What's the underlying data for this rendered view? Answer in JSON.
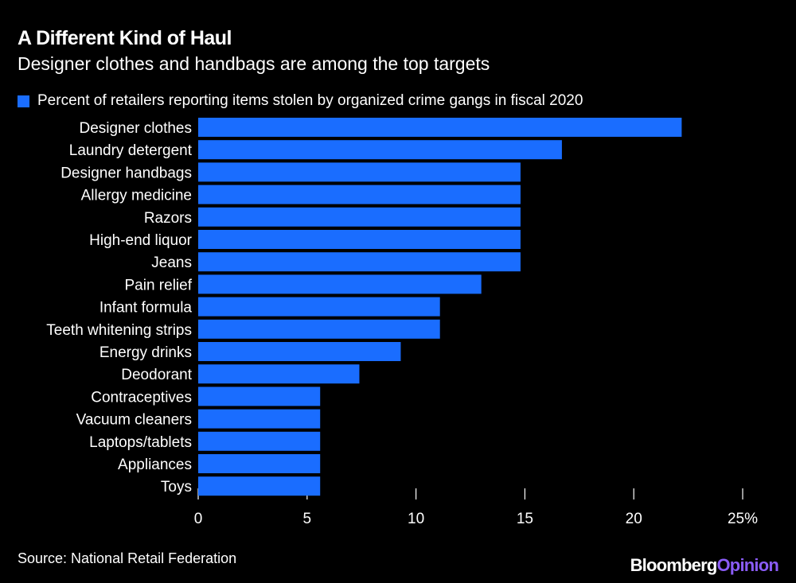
{
  "title": "A Different Kind of Haul",
  "subtitle": "Designer clothes and handbags are among the top targets",
  "source": "Source: National Retail Federation",
  "logo": {
    "brand": "Bloomberg",
    "suffix": "Opinion"
  },
  "colors": {
    "bar": "#1a6dff",
    "background": "#000000",
    "text": "#ffffff"
  },
  "chart_data": {
    "type": "bar",
    "orientation": "horizontal",
    "categories": [
      "Designer clothes",
      "Laundry detergent",
      "Designer handbags",
      "Allergy medicine",
      "Razors",
      "High-end liquor",
      "Jeans",
      "Pain relief",
      "Infant formula",
      "Teeth whitening strips",
      "Energy drinks",
      "Deodorant",
      "Contraceptives",
      "Vacuum cleaners",
      "Laptops/tablets",
      "Appliances",
      "Toys"
    ],
    "series": [
      {
        "name": "Percent of retailers reporting items stolen by organized crime gangs in fiscal 2020",
        "values": [
          22.2,
          16.7,
          14.8,
          14.8,
          14.8,
          14.8,
          14.8,
          13.0,
          11.1,
          11.1,
          9.3,
          7.4,
          5.6,
          5.6,
          5.6,
          5.6,
          5.6
        ]
      }
    ],
    "xlim": [
      0,
      25
    ],
    "xticks": [
      0,
      5,
      10,
      15,
      20,
      25
    ],
    "xtick_labels": [
      "0",
      "5",
      "10",
      "15",
      "20",
      "25%"
    ],
    "grid": false,
    "legend_position": "top-left"
  }
}
